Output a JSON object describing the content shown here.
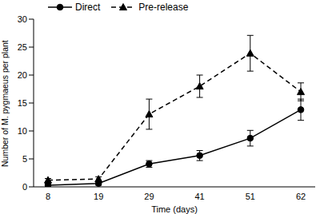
{
  "chart_data": {
    "type": "line",
    "x_label": "Time (days)",
    "y_label": "Number of M. pygmaeus per plant",
    "categories": [
      8,
      19,
      29,
      41,
      51,
      62
    ],
    "ylim": [
      0,
      30
    ],
    "yticks": [
      0,
      5,
      10,
      15,
      20,
      25,
      30
    ],
    "grid": false,
    "legend": "top-left",
    "series": [
      {
        "name": "Direct",
        "color": "#000000",
        "marker": "circle",
        "line_style": "solid",
        "values": [
          0.3,
          0.6,
          4.1,
          5.6,
          8.7,
          13.8
        ],
        "errors": [
          0.2,
          0.3,
          0.6,
          0.9,
          1.4,
          1.9
        ]
      },
      {
        "name": "Pre-release",
        "color": "#000000",
        "marker": "triangle",
        "line_style": "dashed",
        "values": [
          1.2,
          1.4,
          13.0,
          18.0,
          23.9,
          17.0
        ],
        "errors": [
          0.3,
          0.4,
          2.7,
          2.0,
          3.2,
          1.6
        ]
      }
    ]
  }
}
